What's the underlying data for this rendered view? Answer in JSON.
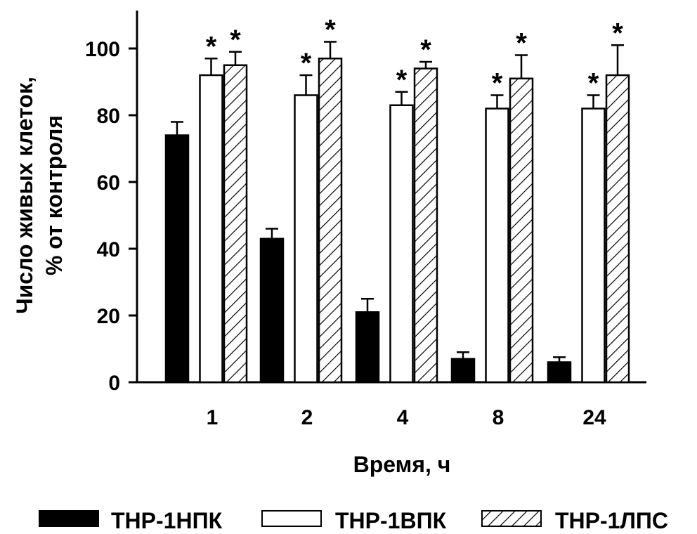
{
  "chart_data": {
    "type": "bar",
    "categories": [
      "1",
      "2",
      "4",
      "8",
      "24"
    ],
    "series": [
      {
        "name": "THP-1НПК",
        "pattern": "solid-black",
        "values": [
          74,
          43,
          21,
          7,
          6
        ],
        "errors": [
          4,
          3,
          4,
          2,
          1.5
        ],
        "significant": [
          false,
          false,
          false,
          false,
          false
        ]
      },
      {
        "name": "THP-1ВПК",
        "pattern": "white",
        "values": [
          92,
          86,
          83,
          82,
          82
        ],
        "errors": [
          5,
          6,
          4,
          4,
          4
        ],
        "significant": [
          true,
          true,
          true,
          true,
          true
        ]
      },
      {
        "name": "THP-1ЛПС",
        "pattern": "diagonal-hatch",
        "values": [
          95,
          97,
          94,
          91,
          92
        ],
        "errors": [
          4,
          5,
          2,
          7,
          9
        ],
        "significant": [
          true,
          true,
          true,
          true,
          true
        ]
      }
    ],
    "significance_marker": "*",
    "xlabel": "Время, ч",
    "ylabel_line1": "Число живых клеток,",
    "ylabel_line2": "% от контроля",
    "ylim": [
      0,
      110
    ],
    "yticks": [
      "0",
      "20",
      "40",
      "60",
      "80",
      "100"
    ],
    "legend_position": "bottom",
    "grid": false,
    "colors": {
      "axis": "#000000",
      "solid": "#000000",
      "white": "#ffffff"
    }
  }
}
